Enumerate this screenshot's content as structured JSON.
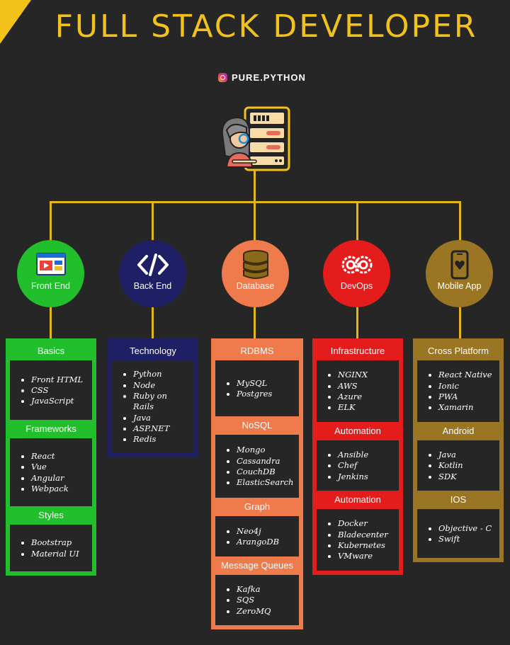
{
  "header": {
    "title": "FULL STACK DEVELOPER",
    "handle": "PURE.PYTHON"
  },
  "icons": {
    "handle": "instagram-icon",
    "hero": "developer-server-icon",
    "categories": [
      "browser-window-icon",
      "code-brackets-icon",
      "database-stack-icon",
      "devops-gears-icon",
      "mobile-phone-icon"
    ]
  },
  "colors": {
    "background": "#262626",
    "accent": "#f2c21b",
    "connector": "#e2b51a",
    "front_end": "#20bf2b",
    "back_end": "#1f1f66",
    "database": "#ef7b4c",
    "devops": "#e41c1c",
    "mobile": "#9a7624"
  },
  "categories": [
    {
      "label": "Front End",
      "sections": [
        {
          "title": "Basics",
          "items": [
            "Front HTML",
            "CSS",
            "JavaScript"
          ]
        },
        {
          "title": "Frameworks",
          "items": [
            "React",
            "Vue",
            "Angular",
            "Webpack"
          ]
        },
        {
          "title": "Styles",
          "items": [
            "Bootstrap",
            "Material UI"
          ]
        }
      ]
    },
    {
      "label": "Back End",
      "sections": [
        {
          "title": "Technology",
          "items": [
            "Python",
            "Node",
            "Ruby on Rails",
            "Java",
            "ASP.NET",
            "Redis"
          ]
        }
      ]
    },
    {
      "label": "Database",
      "sections": [
        {
          "title": "RDBMS",
          "items": [
            "MySQL",
            "Postgres"
          ]
        },
        {
          "title": "NoSQL",
          "items": [
            "Mongo",
            "Cassandra",
            "CouchDB",
            "ElasticSearch"
          ]
        },
        {
          "title": "Graph",
          "items": [
            "Neo4j",
            "ArangoDB"
          ]
        },
        {
          "title": "Message Queues",
          "items": [
            "Kafka",
            "SQS",
            "ZeroMQ"
          ]
        }
      ]
    },
    {
      "label": "DevOps",
      "sections": [
        {
          "title": "Infrastructure",
          "items": [
            "NGINX",
            "AWS",
            "Azure",
            "ELK"
          ]
        },
        {
          "title": "Automation",
          "items": [
            "Ansible",
            "Chef",
            "Jenkins"
          ]
        },
        {
          "title": "Automation",
          "items": [
            "Docker",
            "Bladecenter",
            "Kubernetes",
            "VMware"
          ]
        }
      ]
    },
    {
      "label": "Mobile App",
      "sections": [
        {
          "title": "Cross Platform",
          "items": [
            "React Native",
            "Ionic",
            "PWA",
            "Xamarin"
          ]
        },
        {
          "title": "Android",
          "items": [
            "Java",
            "Kotlin",
            "SDK"
          ]
        },
        {
          "title": "IOS",
          "items": [
            "Objective - C",
            "Swift"
          ]
        }
      ]
    }
  ]
}
